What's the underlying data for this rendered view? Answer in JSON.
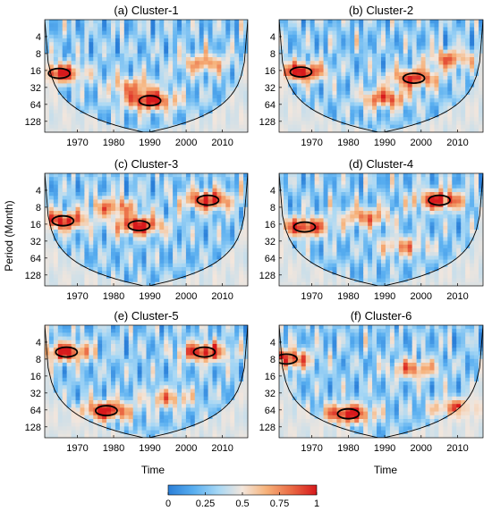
{
  "figure": {
    "ylabel": "Period (Month)",
    "xlabel": "Time",
    "colorbar": {
      "ticks": [
        "0",
        "0.25",
        "0.5",
        "0.75",
        "1"
      ],
      "colors": [
        "#2b7fd8",
        "#58aef0",
        "#a8d8f5",
        "#f3e6dc",
        "#f6b27a",
        "#ea6a44",
        "#d7191c"
      ]
    }
  },
  "chart_data": [
    {
      "type": "heatmap",
      "title": "(a) Cluster-1",
      "x_ticks": [
        1970,
        1980,
        1990,
        2000,
        2010
      ],
      "y_ticks": [
        4,
        8,
        16,
        32,
        64,
        128
      ],
      "xlim": [
        1961,
        2017
      ],
      "ylim_period": [
        2,
        200
      ],
      "y_scale": "log2",
      "hotspots": [
        {
          "year": 1965,
          "period": 18,
          "power": 0.9
        },
        {
          "year": 1990,
          "period": 55,
          "power": 0.95
        },
        {
          "year": 2005,
          "period": 12,
          "power": 0.55
        },
        {
          "year": 1985,
          "period": 30,
          "power": 0.5
        }
      ]
    },
    {
      "type": "heatmap",
      "title": "(b) Cluster-2",
      "x_ticks": [
        1970,
        1980,
        1990,
        2000,
        2010
      ],
      "y_ticks": [
        4,
        8,
        16,
        32,
        64,
        128
      ],
      "xlim": [
        1961,
        2017
      ],
      "ylim_period": [
        2,
        200
      ],
      "y_scale": "log2",
      "hotspots": [
        {
          "year": 1967,
          "period": 17,
          "power": 0.92
        },
        {
          "year": 1998,
          "period": 22,
          "power": 0.8
        },
        {
          "year": 1990,
          "period": 50,
          "power": 0.7
        },
        {
          "year": 2008,
          "period": 10,
          "power": 0.6
        }
      ]
    },
    {
      "type": "heatmap",
      "title": "(c) Cluster-3",
      "x_ticks": [
        1970,
        1980,
        1990,
        2000,
        2010
      ],
      "y_ticks": [
        4,
        8,
        16,
        32,
        64,
        128
      ],
      "xlim": [
        1961,
        2017
      ],
      "ylim_period": [
        2,
        200
      ],
      "y_scale": "log2",
      "hotspots": [
        {
          "year": 1966,
          "period": 14,
          "power": 0.85
        },
        {
          "year": 1987,
          "period": 17,
          "power": 0.9
        },
        {
          "year": 2006,
          "period": 6,
          "power": 0.88
        },
        {
          "year": 1980,
          "period": 8,
          "power": 0.6
        }
      ]
    },
    {
      "type": "heatmap",
      "title": "(d) Cluster-4",
      "x_ticks": [
        1970,
        1980,
        1990,
        2000,
        2010
      ],
      "y_ticks": [
        4,
        8,
        16,
        32,
        64,
        128
      ],
      "xlim": [
        1961,
        2017
      ],
      "ylim_period": [
        2,
        200
      ],
      "y_scale": "log2",
      "hotspots": [
        {
          "year": 1968,
          "period": 18,
          "power": 0.85
        },
        {
          "year": 2005,
          "period": 6,
          "power": 0.9
        },
        {
          "year": 1985,
          "period": 12,
          "power": 0.6
        },
        {
          "year": 1995,
          "period": 40,
          "power": 0.5
        }
      ]
    },
    {
      "type": "heatmap",
      "title": "(e) Cluster-5",
      "x_ticks": [
        1970,
        1980,
        1990,
        2000,
        2010
      ],
      "y_ticks": [
        4,
        8,
        16,
        32,
        64,
        128
      ],
      "xlim": [
        1961,
        2017
      ],
      "ylim_period": [
        2,
        200
      ],
      "y_scale": "log2",
      "hotspots": [
        {
          "year": 1978,
          "period": 66,
          "power": 0.92
        },
        {
          "year": 2005,
          "period": 6,
          "power": 0.88
        },
        {
          "year": 1967,
          "period": 6,
          "power": 0.85
        },
        {
          "year": 1995,
          "period": 40,
          "power": 0.5
        }
      ]
    },
    {
      "type": "heatmap",
      "title": "(f) Cluster-6",
      "x_ticks": [
        1970,
        1980,
        1990,
        2000,
        2010
      ],
      "y_ticks": [
        4,
        8,
        16,
        32,
        64,
        128
      ],
      "xlim": [
        1961,
        2017
      ],
      "ylim_period": [
        2,
        200
      ],
      "y_scale": "log2",
      "hotspots": [
        {
          "year": 1980,
          "period": 75,
          "power": 0.95
        },
        {
          "year": 1963,
          "period": 8,
          "power": 0.85
        },
        {
          "year": 2010,
          "period": 60,
          "power": 0.7
        },
        {
          "year": 1998,
          "period": 12,
          "power": 0.6
        }
      ]
    }
  ]
}
